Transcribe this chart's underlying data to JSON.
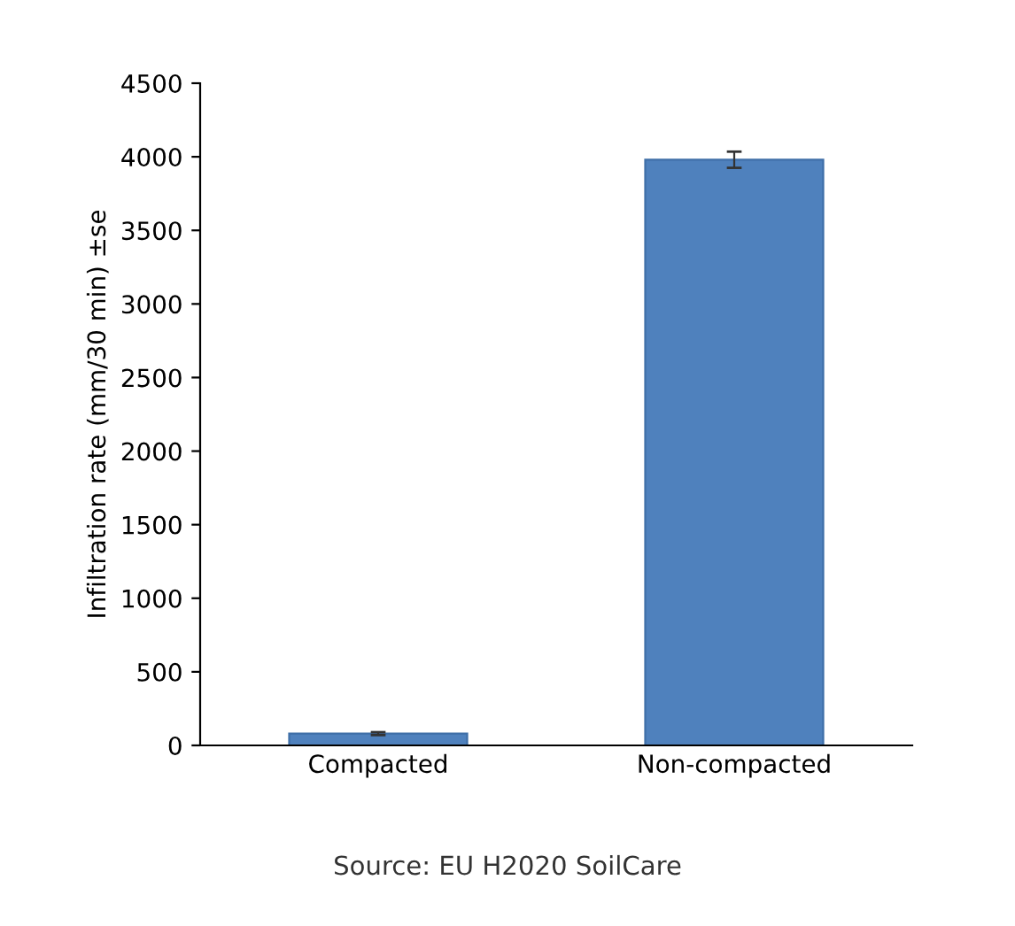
{
  "chart_data": {
    "type": "bar",
    "ylabel": "Infiltration rate (mm/30 min) ±se",
    "categories": [
      "Compacted",
      "Non-compacted"
    ],
    "values": [
      80,
      3980
    ],
    "errors": [
      10,
      55
    ],
    "color": "#4f81bd",
    "ylim": [
      0,
      4500
    ],
    "yticks": [
      0,
      500,
      1000,
      1500,
      2000,
      2500,
      3000,
      3500,
      4000,
      4500
    ],
    "grid": false,
    "legend": false,
    "annotations": [
      "Source: EU H2020 SoilCare"
    ]
  }
}
